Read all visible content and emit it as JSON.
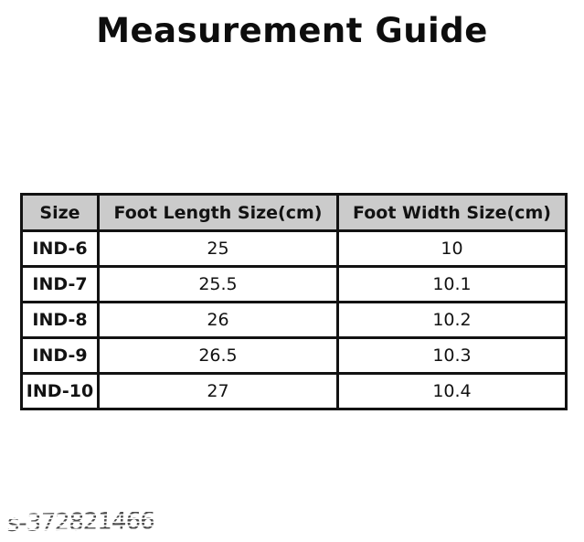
{
  "page": {
    "title": "Measurement Guide",
    "watermark": "s-372821466",
    "background_color": "#ffffff"
  },
  "table": {
    "headers": [
      "Size",
      "Foot Length Size(cm)",
      "Foot Width Size(cm)"
    ],
    "rows": [
      {
        "size": "IND-6",
        "foot_length": "25",
        "foot_width": "10"
      },
      {
        "size": "IND-7",
        "foot_length": "25.5",
        "foot_width": "10.1"
      },
      {
        "size": "IND-8",
        "foot_length": "26",
        "foot_width": "10.2"
      },
      {
        "size": "IND-9",
        "foot_length": "26.5",
        "foot_width": "10.3"
      },
      {
        "size": "IND-10",
        "foot_length": "27",
        "foot_width": "10.4"
      }
    ],
    "colors": {
      "header_background": "#cbcbcb",
      "border": "#121212",
      "text": "#121212",
      "watermark_text": "#4e4e4e"
    }
  }
}
